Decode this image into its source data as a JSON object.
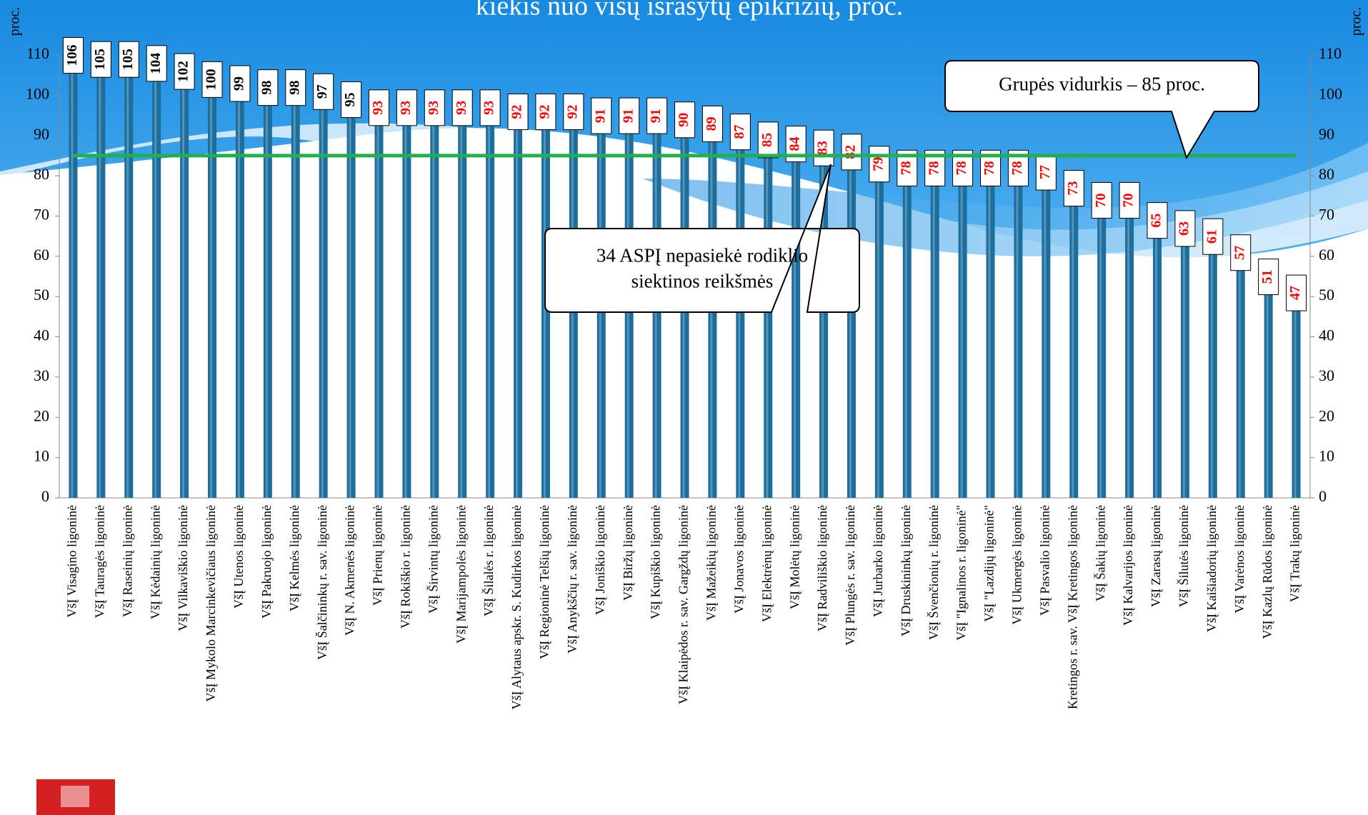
{
  "chart_data": {
    "type": "bar",
    "title": "kiekis nuo visų išrašytų epikrizių, proc.",
    "ylabel": "proc.",
    "y2label": "proc.",
    "categories": [
      "VšĮ Visagino ligoninė",
      "VšĮ Tauragės ligoninė",
      "VšĮ Raseinių ligoninė",
      "VšĮ Kėdainių ligoninė",
      "VšĮ Vilkaviškio ligoninė",
      "VšĮ Mykolo Marcinkevičiaus ligoninė",
      "VšĮ Utenos ligoninė",
      "VšĮ Pakruojo ligoninė",
      "VšĮ Kelmės ligoninė",
      "VšĮ Šalčininkų r. sav. ligoninė",
      "VšĮ N. Akmenės ligoninė",
      "VšĮ Prienų ligoninė",
      "VšĮ Rokiškio r. ligoninė",
      "VšĮ Širvintų ligoninė",
      "VšĮ Marijampolės ligoninė",
      "VšĮ Šilalės r. ligoninė",
      "VšĮ Alytaus apskr. S. Kudirkos ligoninė",
      "VšĮ Regioninė Telšių ligoninė",
      "VšĮ Anykščių r. sav. ligoninė",
      "VšĮ Joniškio ligoninė",
      "VšĮ Biržų ligoninė",
      "VšĮ Kupiškio ligoninė",
      "VšĮ Klaipėdos r. sav. Gargždų ligoninė",
      "VšĮ Mažeikių ligoninė",
      "VšĮ Jonavos ligoninė",
      "VšĮ Elektrėnų ligoninė",
      "VšĮ Molėtų ligoninė",
      "VšĮ Radviliškio ligoninė",
      "VšĮ Plungės r. sav. ligoninė",
      "VšĮ Jurbarko ligoninė",
      "VšĮ Druskininkų ligoninė",
      "VšĮ Švenčionių r. ligoninė",
      "VšĮ \"Ignalinos r. ligoninė\"",
      "VšĮ \"Lazdijų ligoninė\"",
      "VšĮ Ukmergės ligoninė",
      "VšĮ Pasvalio ligoninė",
      "Kretingos r. sav. VšĮ Kretingos ligoninė",
      "VšĮ Šakių ligoninė",
      "VšĮ Kalvarijos ligoninė",
      "VšĮ Zarasų ligoninė",
      "VšĮ Šilutės ligoninė",
      "VšĮ Kaišiadorių ligoninė",
      "VšĮ Varėnos ligoninė",
      "VšĮ Kazlų Rūdos ligoninė",
      "VšĮ Trakų ligoninė"
    ],
    "values": [
      106,
      105,
      105,
      104,
      102,
      100,
      99,
      98,
      98,
      97,
      95,
      93,
      93,
      93,
      93,
      93,
      92,
      92,
      92,
      91,
      91,
      91,
      90,
      89,
      87,
      85,
      84,
      83,
      82,
      79,
      78,
      78,
      78,
      78,
      78,
      77,
      73,
      70,
      70,
      65,
      63,
      61,
      57,
      51,
      47
    ],
    "color": "#1c6e9c",
    "value_label_colors": [
      "#000000",
      "#000000",
      "#000000",
      "#000000",
      "#000000",
      "#000000",
      "#000000",
      "#000000",
      "#000000",
      "#000000",
      "#000000",
      "#ff0000",
      "#ff0000",
      "#ff0000",
      "#ff0000",
      "#ff0000",
      "#ff0000",
      "#ff0000",
      "#ff0000",
      "#ff0000",
      "#ff0000",
      "#ff0000",
      "#ff0000",
      "#ff0000",
      "#ff0000",
      "#ff0000",
      "#ff0000",
      "#ff0000",
      "#ff0000",
      "#ff0000",
      "#ff0000",
      "#ff0000",
      "#ff0000",
      "#ff0000",
      "#ff0000",
      "#ff0000",
      "#ff0000",
      "#ff0000",
      "#ff0000",
      "#ff0000",
      "#ff0000",
      "#ff0000",
      "#ff0000",
      "#ff0000",
      "#ff0000"
    ],
    "ylim": [
      0,
      110
    ],
    "yticks": [
      0,
      10,
      20,
      30,
      40,
      50,
      60,
      70,
      80,
      90,
      100,
      110
    ],
    "y2lim": [
      0,
      110
    ],
    "y2ticks": [
      0,
      10,
      20,
      30,
      40,
      50,
      60,
      70,
      80,
      90,
      100,
      110
    ],
    "reference_line": {
      "value": 85,
      "color": "#22b04c"
    },
    "annotations": [
      {
        "lines": [
          "Grupės vidurkis – 85 proc."
        ]
      },
      {
        "lines": [
          "34 ASPĮ nepasiekė rodiklio",
          "siektinos reikšmės"
        ]
      }
    ],
    "grid": false
  }
}
